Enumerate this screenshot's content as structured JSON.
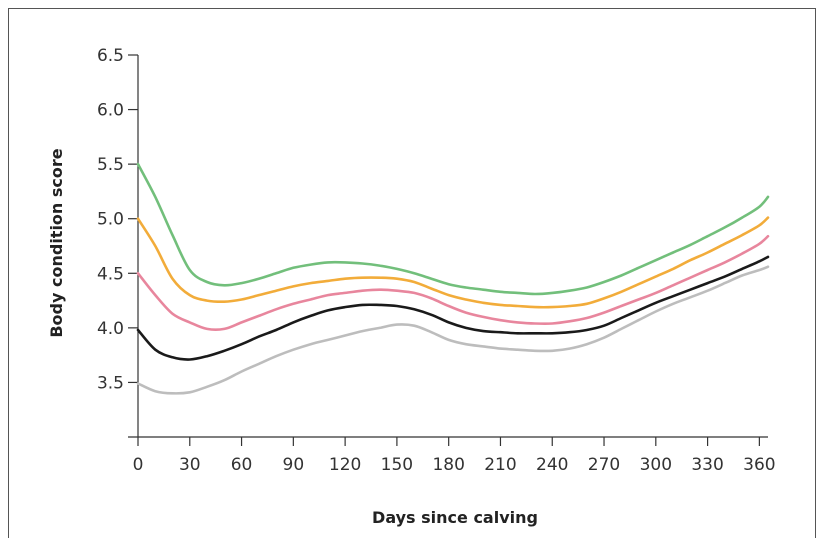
{
  "chart_data": {
    "type": "line",
    "title": "",
    "xlabel": "Days since calving",
    "ylabel": "Body condition score",
    "xlim": [
      0,
      365
    ],
    "ylim": [
      3.0,
      6.5
    ],
    "xticks": [
      "0",
      "30",
      "60",
      "90",
      "120",
      "150",
      "180",
      "210",
      "240",
      "270",
      "300",
      "330",
      "360"
    ],
    "yticks": [
      "3.5",
      "4.0",
      "4.5",
      "5.0",
      "5.5",
      "6.0",
      "6.5"
    ],
    "grid": false,
    "series": [
      {
        "color": "#72bf7b",
        "x": [
          0,
          10,
          20,
          30,
          40,
          50,
          60,
          70,
          80,
          90,
          100,
          110,
          120,
          130,
          140,
          150,
          160,
          170,
          180,
          190,
          200,
          210,
          220,
          230,
          240,
          250,
          260,
          270,
          280,
          290,
          300,
          310,
          320,
          330,
          340,
          350,
          360,
          365
        ],
        "y": [
          5.5,
          5.2,
          4.85,
          4.53,
          4.42,
          4.39,
          4.41,
          4.45,
          4.5,
          4.55,
          4.58,
          4.6,
          4.6,
          4.59,
          4.57,
          4.54,
          4.5,
          4.45,
          4.4,
          4.37,
          4.35,
          4.33,
          4.32,
          4.31,
          4.32,
          4.34,
          4.37,
          4.42,
          4.48,
          4.55,
          4.62,
          4.69,
          4.76,
          4.84,
          4.92,
          5.01,
          5.11,
          5.2
        ]
      },
      {
        "color": "#f2ac3a",
        "x": [
          0,
          10,
          20,
          30,
          40,
          50,
          60,
          70,
          80,
          90,
          100,
          110,
          120,
          130,
          140,
          150,
          160,
          170,
          180,
          190,
          200,
          210,
          220,
          230,
          240,
          250,
          260,
          270,
          280,
          290,
          300,
          310,
          320,
          330,
          340,
          350,
          360,
          365
        ],
        "y": [
          5.0,
          4.75,
          4.45,
          4.3,
          4.25,
          4.24,
          4.26,
          4.3,
          4.34,
          4.38,
          4.41,
          4.43,
          4.45,
          4.46,
          4.46,
          4.45,
          4.42,
          4.36,
          4.3,
          4.26,
          4.23,
          4.21,
          4.2,
          4.19,
          4.19,
          4.2,
          4.22,
          4.27,
          4.33,
          4.4,
          4.47,
          4.54,
          4.62,
          4.69,
          4.77,
          4.85,
          4.94,
          5.01
        ]
      },
      {
        "color": "#e8869d",
        "x": [
          0,
          10,
          20,
          30,
          40,
          50,
          60,
          70,
          80,
          90,
          100,
          110,
          120,
          130,
          140,
          150,
          160,
          170,
          180,
          190,
          200,
          210,
          220,
          230,
          240,
          250,
          260,
          270,
          280,
          290,
          300,
          310,
          320,
          330,
          340,
          350,
          360,
          365
        ],
        "y": [
          4.5,
          4.3,
          4.13,
          4.05,
          3.99,
          3.99,
          4.05,
          4.11,
          4.17,
          4.22,
          4.26,
          4.3,
          4.32,
          4.34,
          4.35,
          4.34,
          4.32,
          4.27,
          4.2,
          4.14,
          4.1,
          4.07,
          4.05,
          4.04,
          4.04,
          4.06,
          4.09,
          4.14,
          4.2,
          4.26,
          4.32,
          4.39,
          4.46,
          4.53,
          4.6,
          4.68,
          4.77,
          4.84
        ]
      },
      {
        "color": "#1a1a1a",
        "x": [
          0,
          10,
          20,
          30,
          40,
          50,
          60,
          70,
          80,
          90,
          100,
          110,
          120,
          130,
          140,
          150,
          160,
          170,
          180,
          190,
          200,
          210,
          220,
          230,
          240,
          250,
          260,
          270,
          280,
          290,
          300,
          310,
          320,
          330,
          340,
          350,
          360,
          365
        ],
        "y": [
          3.98,
          3.8,
          3.73,
          3.71,
          3.74,
          3.79,
          3.85,
          3.92,
          3.98,
          4.05,
          4.11,
          4.16,
          4.19,
          4.21,
          4.21,
          4.2,
          4.17,
          4.12,
          4.05,
          4.0,
          3.97,
          3.96,
          3.95,
          3.95,
          3.95,
          3.96,
          3.98,
          4.02,
          4.09,
          4.16,
          4.23,
          4.29,
          4.35,
          4.41,
          4.47,
          4.54,
          4.61,
          4.65
        ]
      },
      {
        "color": "#bdbdbd",
        "x": [
          0,
          10,
          20,
          30,
          40,
          50,
          60,
          70,
          80,
          90,
          100,
          110,
          120,
          130,
          140,
          150,
          160,
          170,
          180,
          190,
          200,
          210,
          220,
          230,
          240,
          250,
          260,
          270,
          280,
          290,
          300,
          310,
          320,
          330,
          340,
          350,
          360,
          365
        ],
        "y": [
          3.49,
          3.42,
          3.4,
          3.41,
          3.46,
          3.52,
          3.6,
          3.67,
          3.74,
          3.8,
          3.85,
          3.89,
          3.93,
          3.97,
          4.0,
          4.03,
          4.02,
          3.96,
          3.89,
          3.85,
          3.83,
          3.81,
          3.8,
          3.79,
          3.79,
          3.81,
          3.85,
          3.91,
          3.99,
          4.07,
          4.15,
          4.22,
          4.28,
          4.34,
          4.41,
          4.48,
          4.53,
          4.56
        ]
      }
    ]
  }
}
